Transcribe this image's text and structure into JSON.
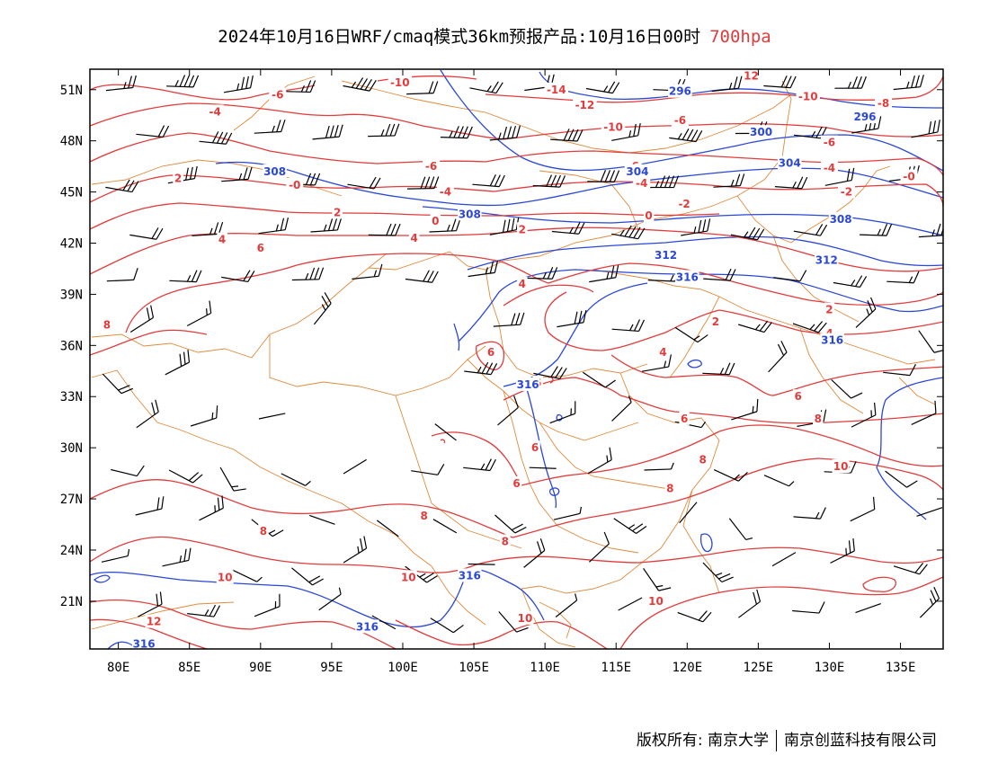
{
  "title": {
    "main": "2024年10月16日WRF/cmaq模式36km预报产品:10月16日00时",
    "level": "700hpa"
  },
  "colors": {
    "temperature": "#e23b3b",
    "geopotential": "#2a47d6",
    "boundary": "#e08a3c",
    "wind": "#000000",
    "level_title": "#e23b3b"
  },
  "axes": {
    "lon_range": [
      78,
      138
    ],
    "lat_range": [
      18.2,
      52.2
    ],
    "lon_ticks": [
      80,
      85,
      90,
      95,
      100,
      105,
      110,
      115,
      120,
      125,
      130,
      135
    ],
    "lon_labels": [
      "80E",
      "85E",
      "90E",
      "95E",
      "100E",
      "105E",
      "110E",
      "115E",
      "120E",
      "125E",
      "130E",
      "135E"
    ],
    "lat_ticks": [
      21,
      24,
      27,
      30,
      33,
      36,
      39,
      42,
      45,
      48,
      51
    ],
    "lat_labels": [
      "21N",
      "24N",
      "27N",
      "30N",
      "33N",
      "36N",
      "39N",
      "42N",
      "45N",
      "48N",
      "51N"
    ]
  },
  "footer": {
    "owner": "版权所有: 南京大学",
    "company": "南京创蓝科技有限公司"
  },
  "chart_data": {
    "type": "map",
    "temperature_labels": [
      {
        "lon": 86.8,
        "lat": 49.7,
        "text": "-4"
      },
      {
        "lon": 91.2,
        "lat": 50.7,
        "text": "-6"
      },
      {
        "lon": 99.8,
        "lat": 51.4,
        "text": "-10"
      },
      {
        "lon": 110.8,
        "lat": 51.0,
        "text": "-14"
      },
      {
        "lon": 112.8,
        "lat": 50.1,
        "text": "-12"
      },
      {
        "lon": 114.8,
        "lat": 48.8,
        "text": "-10"
      },
      {
        "lon": 119.5,
        "lat": 49.2,
        "text": "-6"
      },
      {
        "lon": 128.5,
        "lat": 50.6,
        "text": "-10"
      },
      {
        "lon": 133.8,
        "lat": 50.2,
        "text": "-8"
      },
      {
        "lon": 130.0,
        "lat": 47.9,
        "text": "-6"
      },
      {
        "lon": 102.0,
        "lat": 46.5,
        "text": "-6"
      },
      {
        "lon": 116.2,
        "lat": 46.5,
        "text": "-6"
      },
      {
        "lon": 84.2,
        "lat": 45.8,
        "text": "2"
      },
      {
        "lon": 92.4,
        "lat": 45.4,
        "text": "-0"
      },
      {
        "lon": 103.0,
        "lat": 45.0,
        "text": "-4"
      },
      {
        "lon": 116.8,
        "lat": 45.5,
        "text": "-4"
      },
      {
        "lon": 130.0,
        "lat": 46.4,
        "text": "-4"
      },
      {
        "lon": 131.2,
        "lat": 45.0,
        "text": "-2"
      },
      {
        "lon": 135.6,
        "lat": 45.9,
        "text": "-0"
      },
      {
        "lon": 95.4,
        "lat": 43.8,
        "text": "2"
      },
      {
        "lon": 102.3,
        "lat": 43.3,
        "text": "0"
      },
      {
        "lon": 117.3,
        "lat": 43.6,
        "text": "0"
      },
      {
        "lon": 119.8,
        "lat": 44.3,
        "text": "-2"
      },
      {
        "lon": 87.3,
        "lat": 42.2,
        "text": "4"
      },
      {
        "lon": 90.0,
        "lat": 41.7,
        "text": "6"
      },
      {
        "lon": 100.8,
        "lat": 42.3,
        "text": "4"
      },
      {
        "lon": 108.4,
        "lat": 42.8,
        "text": "2"
      },
      {
        "lon": 108.4,
        "lat": 39.6,
        "text": "4"
      },
      {
        "lon": 79.2,
        "lat": 37.2,
        "text": "8"
      },
      {
        "lon": 122.0,
        "lat": 37.4,
        "text": "2"
      },
      {
        "lon": 130.0,
        "lat": 38.1,
        "text": "2"
      },
      {
        "lon": 130.0,
        "lat": 36.7,
        "text": "4"
      },
      {
        "lon": 106.2,
        "lat": 35.6,
        "text": "6"
      },
      {
        "lon": 118.3,
        "lat": 35.6,
        "text": "4"
      },
      {
        "lon": 109.5,
        "lat": 33.8,
        "text": "6"
      },
      {
        "lon": 127.8,
        "lat": 33.0,
        "text": "6"
      },
      {
        "lon": 119.8,
        "lat": 31.7,
        "text": "6"
      },
      {
        "lon": 129.2,
        "lat": 31.7,
        "text": "8"
      },
      {
        "lon": 109.3,
        "lat": 30.0,
        "text": "6"
      },
      {
        "lon": 121.1,
        "lat": 29.3,
        "text": "8"
      },
      {
        "lon": 130.8,
        "lat": 28.9,
        "text": "10"
      },
      {
        "lon": 108.0,
        "lat": 27.9,
        "text": "6"
      },
      {
        "lon": 118.8,
        "lat": 27.6,
        "text": "8"
      },
      {
        "lon": 101.5,
        "lat": 26.0,
        "text": "8"
      },
      {
        "lon": 90.2,
        "lat": 25.1,
        "text": "8"
      },
      {
        "lon": 107.2,
        "lat": 24.5,
        "text": "8"
      },
      {
        "lon": 87.5,
        "lat": 22.4,
        "text": "10"
      },
      {
        "lon": 100.4,
        "lat": 22.4,
        "text": "10"
      },
      {
        "lon": 117.8,
        "lat": 21.0,
        "text": "10"
      },
      {
        "lon": 82.5,
        "lat": 19.8,
        "text": "12"
      },
      {
        "lon": 108.6,
        "lat": 20.0,
        "text": "10"
      },
      {
        "lon": 124.5,
        "lat": 51.8,
        "text": "12"
      }
    ],
    "geopotential_labels": [
      {
        "lon": 119.5,
        "lat": 50.9,
        "text": "296"
      },
      {
        "lon": 132.5,
        "lat": 49.4,
        "text": "296"
      },
      {
        "lon": 125.2,
        "lat": 48.5,
        "text": "300"
      },
      {
        "lon": 91.0,
        "lat": 46.2,
        "text": "308"
      },
      {
        "lon": 116.5,
        "lat": 46.2,
        "text": "304"
      },
      {
        "lon": 127.2,
        "lat": 46.7,
        "text": "304"
      },
      {
        "lon": 104.7,
        "lat": 43.7,
        "text": "308"
      },
      {
        "lon": 130.8,
        "lat": 43.4,
        "text": "308"
      },
      {
        "lon": 118.5,
        "lat": 41.3,
        "text": "312"
      },
      {
        "lon": 129.8,
        "lat": 41.0,
        "text": "312"
      },
      {
        "lon": 120.0,
        "lat": 40.0,
        "text": "316"
      },
      {
        "lon": 130.2,
        "lat": 36.3,
        "text": "316"
      },
      {
        "lon": 108.8,
        "lat": 33.7,
        "text": "316"
      },
      {
        "lon": 104.7,
        "lat": 22.5,
        "text": "316"
      },
      {
        "lon": 97.5,
        "lat": 19.5,
        "text": "316"
      },
      {
        "lon": 81.8,
        "lat": 18.5,
        "text": "316"
      }
    ]
  }
}
